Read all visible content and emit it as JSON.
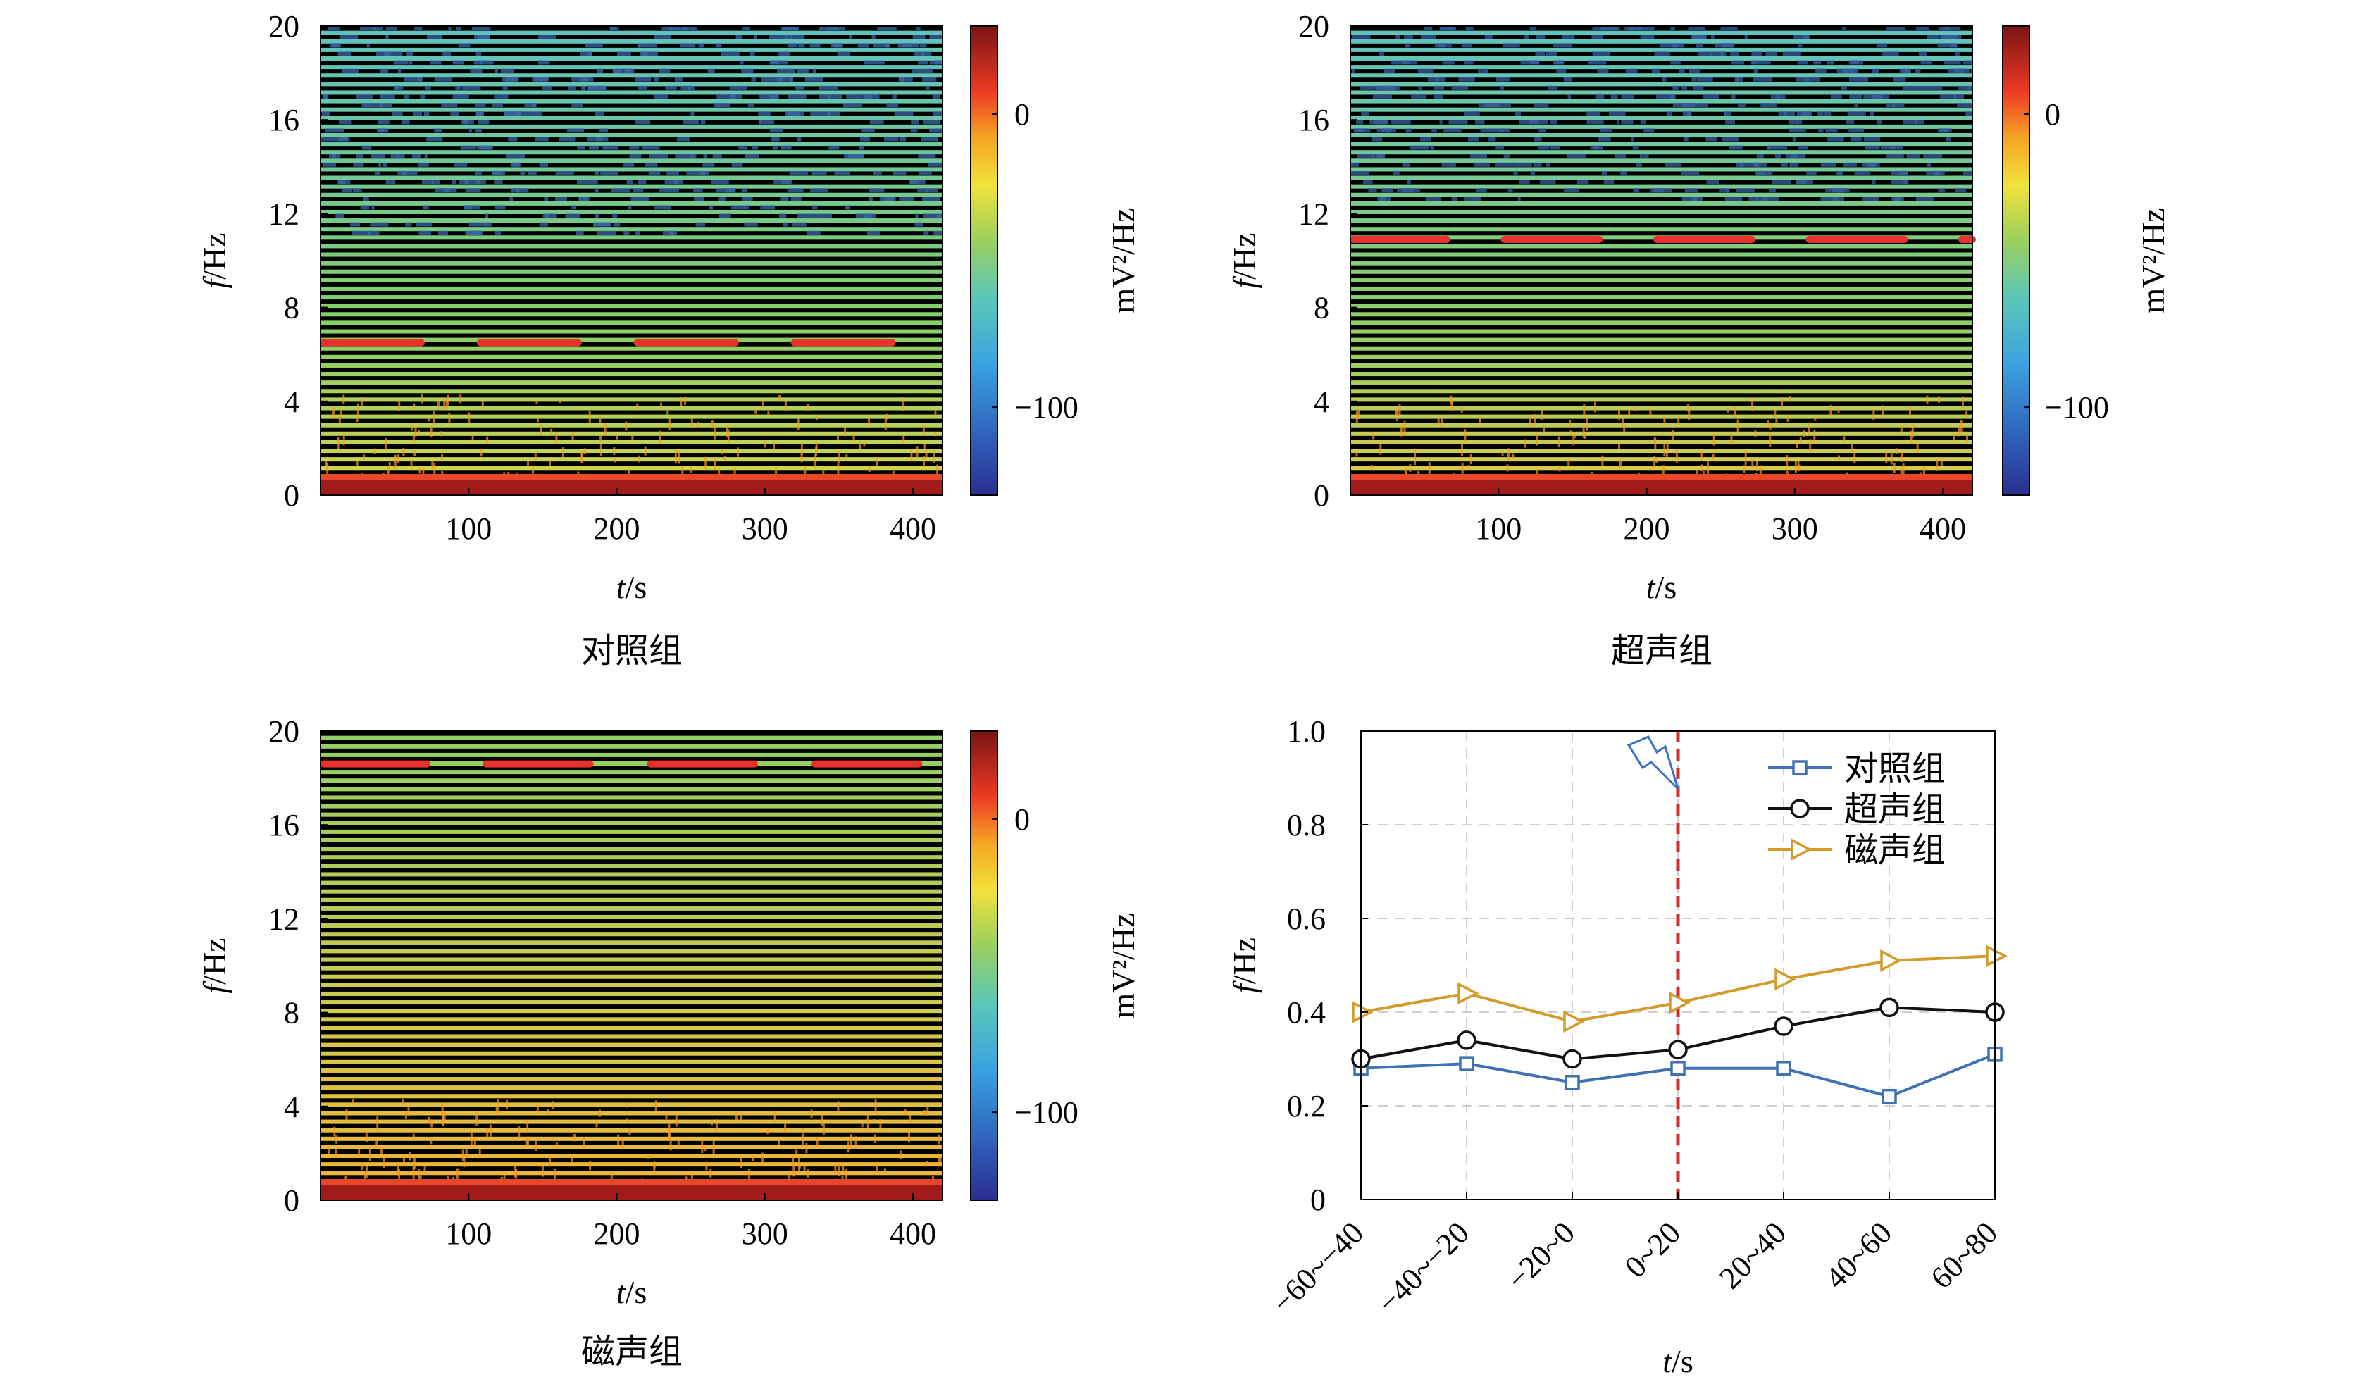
{
  "chart_data": [
    {
      "type": "heatmap",
      "caption": "对照组",
      "xlabel": "t/s",
      "ylabel": "f/Hz",
      "colorbar_label": "mV²/Hz",
      "xlim": [
        0,
        420
      ],
      "ylim": [
        0,
        20
      ],
      "xticks": [
        100,
        200,
        300,
        400
      ],
      "yticks": [
        0,
        4,
        8,
        12,
        16,
        20
      ],
      "colorbar_ticks": [
        0,
        -100
      ],
      "colorbar_range": [
        -130,
        30
      ],
      "dominant_frequency_hz": 6.5,
      "marker_segments_s": [
        [
          0,
          68
        ],
        [
          106,
          174
        ],
        [
          212,
          280
        ],
        [
          318,
          386
        ]
      ],
      "colors": {
        "marker": "#e8312a"
      }
    },
    {
      "type": "heatmap",
      "caption": "超声组",
      "xlabel": "t/s",
      "ylabel": "f/Hz",
      "colorbar_label": "mV²/Hz",
      "xlim": [
        0,
        420
      ],
      "ylim": [
        0,
        20
      ],
      "xticks": [
        100,
        200,
        300,
        400
      ],
      "yticks": [
        0,
        4,
        8,
        12,
        16,
        20
      ],
      "colorbar_ticks": [
        0,
        -100
      ],
      "colorbar_range": [
        -130,
        30
      ],
      "dominant_frequency_hz": 10.9,
      "marker_segments_s": [
        [
          0,
          65
        ],
        [
          102,
          168
        ],
        [
          205,
          271
        ],
        [
          308,
          374
        ],
        [
          411,
          420
        ]
      ],
      "colors": {
        "marker": "#e8312a"
      }
    },
    {
      "type": "heatmap",
      "caption": "磁声组",
      "xlabel": "t/s",
      "ylabel": "f/Hz",
      "colorbar_label": "mV²/Hz",
      "xlim": [
        0,
        420
      ],
      "ylim": [
        0,
        20
      ],
      "xticks": [
        100,
        200,
        300,
        400
      ],
      "yticks": [
        0,
        4,
        8,
        12,
        16,
        20
      ],
      "colorbar_ticks": [
        0,
        -100
      ],
      "colorbar_range": [
        -130,
        30
      ],
      "dominant_frequency_hz": 18.6,
      "marker_segments_s": [
        [
          0,
          72
        ],
        [
          110,
          182
        ],
        [
          221,
          293
        ],
        [
          332,
          404
        ]
      ],
      "colors": {
        "marker": "#e8312a"
      }
    },
    {
      "type": "line",
      "xlabel": "t/s",
      "ylabel": "f/Hz",
      "categories": [
        "−60~−40",
        "−40~−20",
        "−20~0",
        "0~20",
        "20~40",
        "40~60",
        "60~80"
      ],
      "ylim": [
        0,
        1.0
      ],
      "yticks": [
        "0",
        "0.2",
        "0.4",
        "0.6",
        "0.8",
        "1.0"
      ],
      "grid": true,
      "legend_position": "top-right",
      "stimulus_marker_at_category": 3,
      "series": [
        {
          "name": "对照组",
          "marker": "square",
          "color": "#3f72b4",
          "values": [
            0.28,
            0.29,
            0.25,
            0.28,
            0.28,
            0.22,
            0.31
          ]
        },
        {
          "name": "超声组",
          "marker": "circle",
          "color": "#111111",
          "values": [
            0.3,
            0.34,
            0.3,
            0.32,
            0.37,
            0.41,
            0.4
          ]
        },
        {
          "name": "磁声组",
          "marker": "triangle",
          "color": "#d49a2a",
          "values": [
            0.4,
            0.44,
            0.38,
            0.42,
            0.47,
            0.51,
            0.52
          ]
        }
      ],
      "colors": {
        "stimulus_line": "#d42b2b",
        "lightning": "#3a6fc4"
      }
    }
  ]
}
